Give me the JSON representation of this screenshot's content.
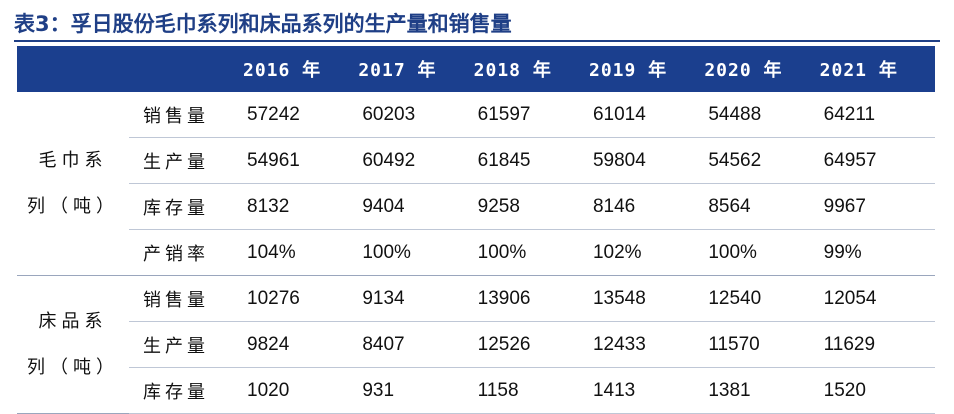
{
  "title": "表3：孚日股份毛巾系列和床品系列的生产量和销售量",
  "table": {
    "header": [
      "2016 年",
      "2017 年",
      "2018 年",
      "2019 年",
      "2020 年",
      "2021 年"
    ],
    "groups": [
      {
        "label_line1": "毛巾系",
        "label_line2": "列（吨）",
        "rows": [
          {
            "metric": "销售量",
            "values": [
              "57242",
              "60203",
              "61597",
              "61014",
              "54488",
              "64211"
            ]
          },
          {
            "metric": "生产量",
            "values": [
              "54961",
              "60492",
              "61845",
              "59804",
              "54562",
              "64957"
            ]
          },
          {
            "metric": "库存量",
            "values": [
              "8132",
              "9404",
              "9258",
              "8146",
              "8564",
              "9967"
            ]
          },
          {
            "metric": "产销率",
            "values": [
              "104%",
              "100%",
              "100%",
              "102%",
              "100%",
              "99%"
            ]
          }
        ]
      },
      {
        "label_line1": "床品系",
        "label_line2": "列（吨）",
        "rows": [
          {
            "metric": "销售量",
            "values": [
              "10276",
              "9134",
              "13906",
              "13548",
              "12540",
              "12054"
            ]
          },
          {
            "metric": "生产量",
            "values": [
              "9824",
              "8407",
              "12526",
              "12433",
              "11570",
              "11629"
            ]
          },
          {
            "metric": "库存量",
            "values": [
              "1020",
              "931",
              "1158",
              "1413",
              "1381",
              "1520"
            ]
          }
        ]
      }
    ]
  },
  "colors": {
    "header_bg": "#1b3f8e",
    "title": "#1f3f86"
  }
}
